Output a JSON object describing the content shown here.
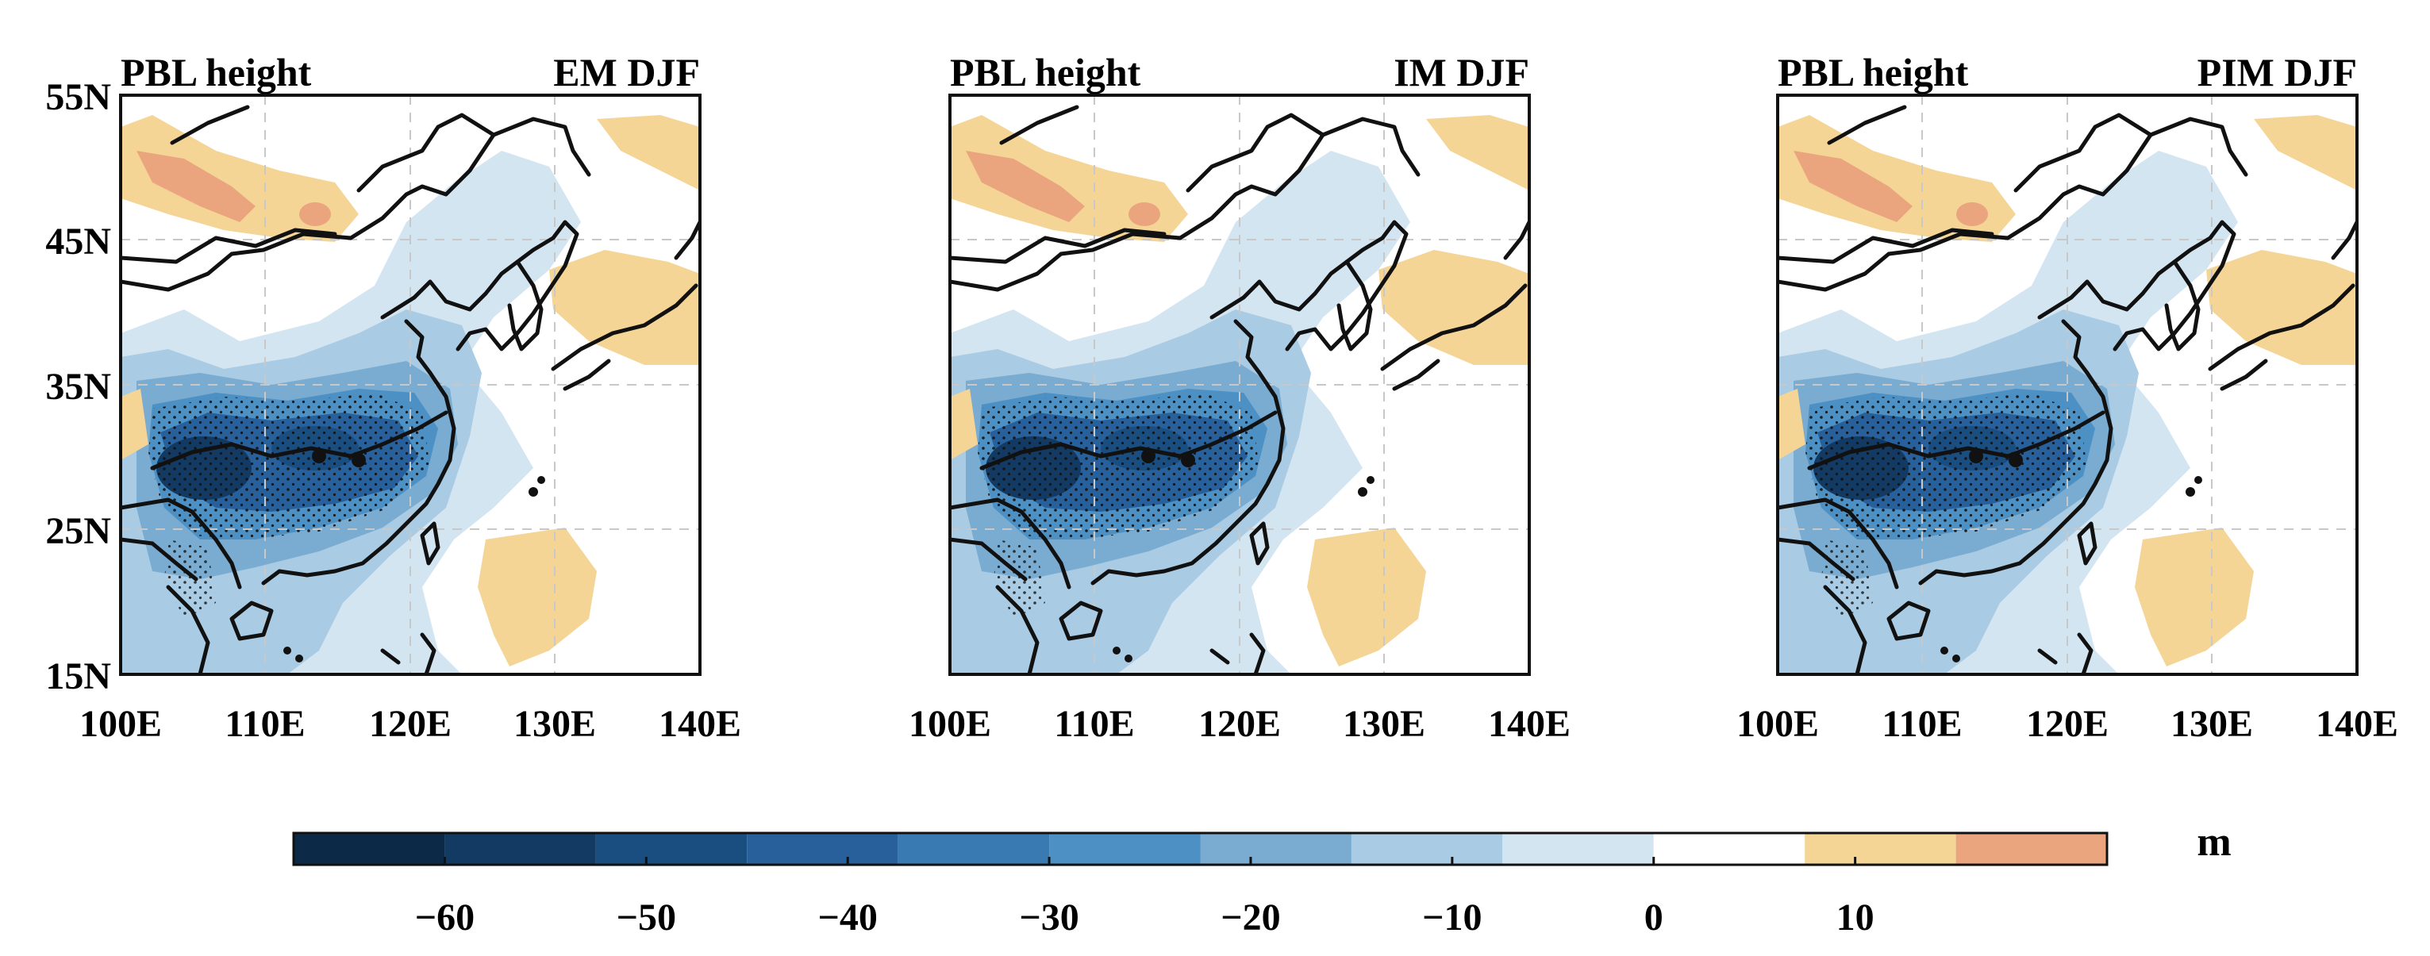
{
  "figure": {
    "panels": [
      {
        "left_title": "PBL height",
        "right_title": "EM DJF"
      },
      {
        "left_title": "PBL height",
        "right_title": "IM DJF"
      },
      {
        "left_title": "PBL height",
        "right_title": "PIM DJF"
      }
    ],
    "y_ticks": [
      "55N",
      "45N",
      "35N",
      "25N",
      "15N"
    ],
    "x_ticks": [
      "100E",
      "110E",
      "120E",
      "130E",
      "140E"
    ],
    "colorbar": {
      "unit": "m",
      "tick_labels": [
        "−60",
        "−50",
        "−40",
        "−30",
        "−20",
        "−10",
        "0",
        "10"
      ],
      "tick_values": [
        -60,
        -50,
        -40,
        -30,
        -20,
        -10,
        0,
        10
      ],
      "range": [
        -67.5,
        22.5
      ],
      "bins": [
        {
          "from": -67.5,
          "to": -60,
          "color": "#0c2a48"
        },
        {
          "from": -60,
          "to": -52.5,
          "color": "#123a63"
        },
        {
          "from": -52.5,
          "to": -45,
          "color": "#1a4e80"
        },
        {
          "from": -45,
          "to": -37.5,
          "color": "#27609a"
        },
        {
          "from": -37.5,
          "to": -30,
          "color": "#3a7ab3"
        },
        {
          "from": -30,
          "to": -22.5,
          "color": "#4c90c4"
        },
        {
          "from": -22.5,
          "to": -15,
          "color": "#7aabd0"
        },
        {
          "from": -15,
          "to": -7.5,
          "color": "#a9cbe4"
        },
        {
          "from": -7.5,
          "to": 0,
          "color": "#d4e5f2"
        },
        {
          "from": 0,
          "to": 7.5,
          "color": "#ffffff"
        },
        {
          "from": 7.5,
          "to": 15,
          "color": "#f4d596"
        },
        {
          "from": 15,
          "to": 22.5,
          "color": "#eaa57e"
        }
      ]
    },
    "colors": {
      "blue_weak": "#d4e5f2",
      "blue_light": "#a9cbe4",
      "blue_mid": "#7aabd0",
      "blue_strong": "#4c90c4",
      "blue_deep": "#27609a",
      "blue_darkest": "#123a63",
      "orange_light": "#f4d596",
      "orange_dark": "#eaa57e",
      "coast": "#111111",
      "grid": "#c8c8c8"
    }
  }
}
